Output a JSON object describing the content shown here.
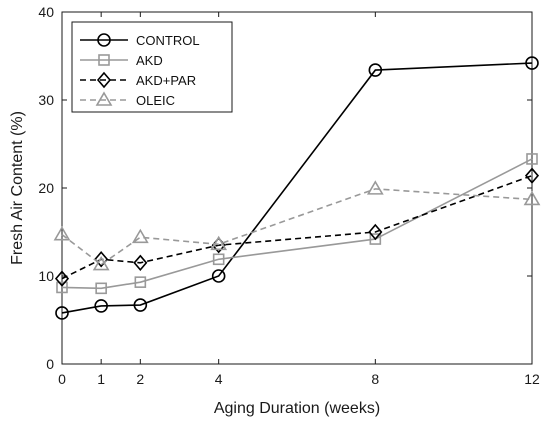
{
  "chart_data": {
    "type": "line",
    "title": "",
    "xlabel": "Aging Duration (weeks)",
    "ylabel": "Fresh Air Content (%)",
    "x": [
      0,
      1,
      2,
      4,
      8,
      12
    ],
    "xticks": [
      "0",
      "1",
      "2",
      "4",
      "8",
      "12"
    ],
    "xlim": [
      0,
      12
    ],
    "yticks": [
      "0",
      "10",
      "20",
      "30",
      "40"
    ],
    "ylim": [
      0,
      40
    ],
    "grid": false,
    "legend_position": "top-left",
    "series": [
      {
        "name": "CONTROL",
        "values": [
          5.8,
          6.6,
          6.7,
          10.0,
          33.4,
          34.2
        ],
        "color": "#000000",
        "dash": "solid",
        "marker": "circle"
      },
      {
        "name": "AKD",
        "values": [
          8.7,
          8.6,
          9.3,
          11.9,
          14.2,
          23.3
        ],
        "color": "#999999",
        "dash": "solid",
        "marker": "square"
      },
      {
        "name": "AKD+PAR",
        "values": [
          9.7,
          11.9,
          11.5,
          13.5,
          15.0,
          21.4
        ],
        "color": "#000000",
        "dash": "dashed",
        "marker": "diamond"
      },
      {
        "name": "OLEIC",
        "values": [
          14.7,
          11.3,
          14.4,
          13.6,
          19.9,
          18.7
        ],
        "color": "#999999",
        "dash": "dashed",
        "marker": "triangle"
      }
    ]
  }
}
